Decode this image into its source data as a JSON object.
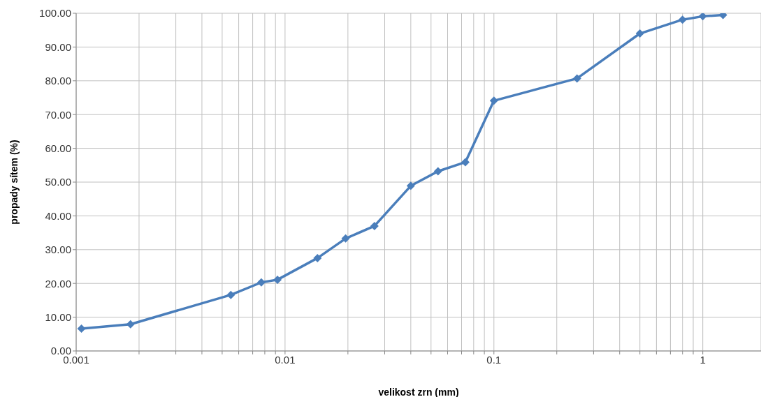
{
  "chart_data": {
    "type": "line",
    "xlabel": "velikost zrn (mm)",
    "ylabel": "propady sítem (%)",
    "x": [
      0.00106,
      0.00182,
      0.0055,
      0.0077,
      0.0092,
      0.0143,
      0.0195,
      0.0268,
      0.04,
      0.054,
      0.073,
      0.1,
      0.25,
      0.5,
      0.8,
      1.0,
      1.25
    ],
    "series": [
      {
        "color": "#4a7ebb",
        "values": [
          6.6,
          7.9,
          16.6,
          20.3,
          21.1,
          27.5,
          33.3,
          37.0,
          48.9,
          53.2,
          55.9,
          74.1,
          80.7,
          94.0,
          98.1,
          99.1,
          99.5
        ]
      }
    ],
    "log": "x",
    "xlim": [
      0.001,
      1.9
    ],
    "xticks": [
      0.001,
      {
        "value": 0.002,
        "label": null
      },
      {
        "value": 0.003,
        "label": null
      },
      {
        "value": 0.004,
        "label": null
      },
      {
        "value": 0.005,
        "label": null
      },
      {
        "value": 0.006,
        "label": null
      },
      {
        "value": 0.007,
        "label": null
      },
      {
        "value": 0.008,
        "label": null
      },
      {
        "value": 0.009,
        "label": null
      },
      0.01,
      {
        "value": 0.02,
        "label": null
      },
      {
        "value": 0.03,
        "label": null
      },
      {
        "value": 0.04,
        "label": null
      },
      {
        "value": 0.05,
        "label": null
      },
      {
        "value": 0.06,
        "label": null
      },
      {
        "value": 0.07,
        "label": null
      },
      {
        "value": 0.08,
        "label": null
      },
      {
        "value": 0.09,
        "label": null
      },
      0.1,
      {
        "value": 0.2,
        "label": null
      },
      {
        "value": 0.3,
        "label": null
      },
      {
        "value": 0.4,
        "label": null
      },
      {
        "value": 0.5,
        "label": null
      },
      {
        "value": 0.6,
        "label": null
      },
      {
        "value": 0.7,
        "label": null
      },
      {
        "value": 0.8,
        "label": null
      },
      {
        "value": 0.9,
        "label": null
      },
      1
    ],
    "ylim": [
      0,
      100
    ],
    "yticks": [
      {
        "value": 0,
        "label": "0.00"
      },
      {
        "value": 10,
        "label": "10.00"
      },
      {
        "value": 20,
        "label": "20.00"
      },
      {
        "value": 30,
        "label": "30.00"
      },
      {
        "value": 40,
        "label": "40.00"
      },
      {
        "value": 50,
        "label": "50.00"
      },
      {
        "value": 60,
        "label": "60.00"
      },
      {
        "value": 70,
        "label": "70.00"
      },
      {
        "value": 80,
        "label": "80.00"
      },
      {
        "value": 90,
        "label": "90.00"
      },
      {
        "value": 100,
        "label": "100.00"
      }
    ],
    "grid": true,
    "marker": "diamond",
    "line_style": "solid"
  }
}
